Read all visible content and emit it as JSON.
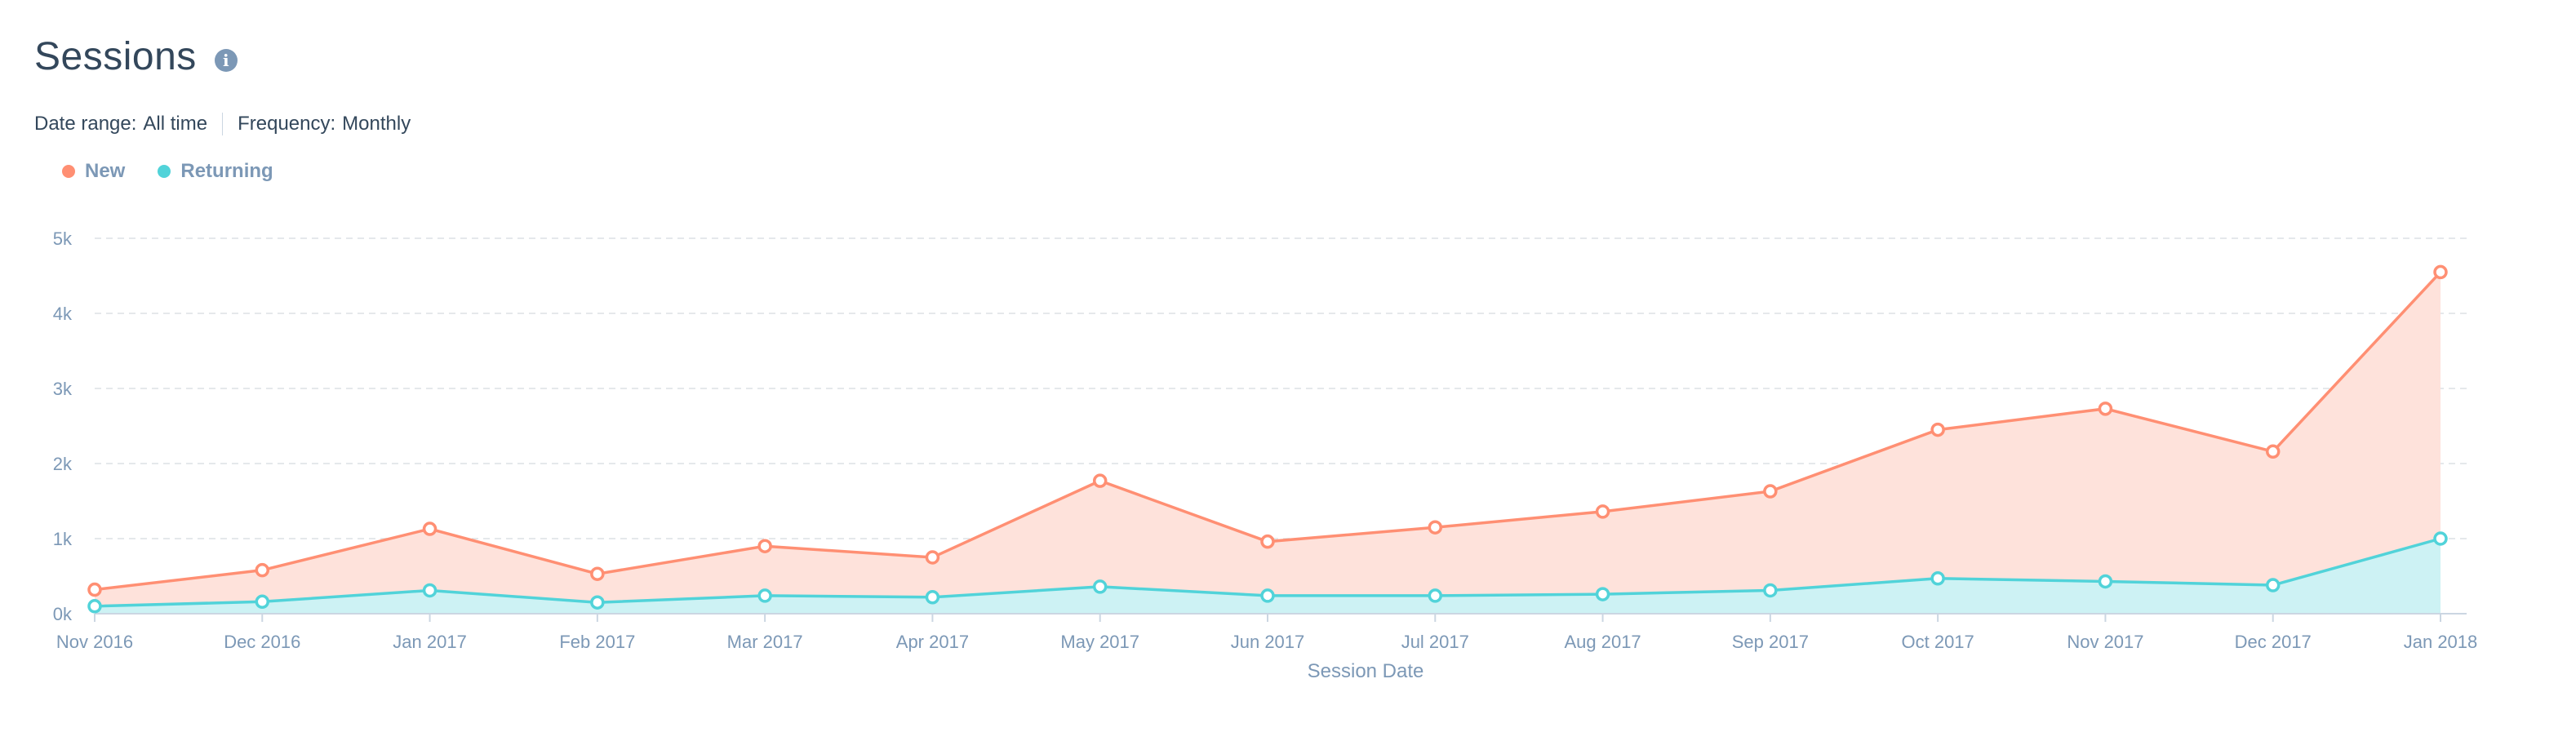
{
  "header": {
    "title": "Sessions",
    "info_icon": "info-icon"
  },
  "filters": {
    "date_range_label": "Date range:",
    "date_range_value": "All time",
    "frequency_label": "Frequency:",
    "frequency_value": "Monthly"
  },
  "colors": {
    "new": "#ff8f73",
    "new_fill": "#fee2db",
    "returning": "#51d3d9",
    "returning_fill": "#cdf2f4",
    "grid": "#e5e8eb",
    "text": "#7c98b6"
  },
  "chart_data": {
    "type": "area",
    "xlabel": "Session Date",
    "ylabel": "",
    "ylim": [
      0,
      5000
    ],
    "yticks": [
      0,
      1000,
      2000,
      3000,
      4000,
      5000
    ],
    "ytick_labels": [
      "0k",
      "1k",
      "2k",
      "3k",
      "4k",
      "5k"
    ],
    "grid": true,
    "legend_position": "top-left",
    "categories": [
      "Nov 2016",
      "Dec 2016",
      "Jan 2017",
      "Feb 2017",
      "Mar 2017",
      "Apr 2017",
      "May 2017",
      "Jun 2017",
      "Jul 2017",
      "Aug 2017",
      "Sep 2017",
      "Oct 2017",
      "Nov 2017",
      "Dec 2017",
      "Jan 2018"
    ],
    "series": [
      {
        "name": "Returning",
        "values": [
          100,
          160,
          310,
          150,
          240,
          220,
          360,
          240,
          240,
          260,
          310,
          470,
          430,
          380,
          1000
        ]
      },
      {
        "name": "New",
        "values": [
          320,
          580,
          1130,
          530,
          900,
          750,
          1770,
          960,
          1150,
          1360,
          1630,
          2450,
          2730,
          2160,
          4550
        ]
      }
    ]
  }
}
